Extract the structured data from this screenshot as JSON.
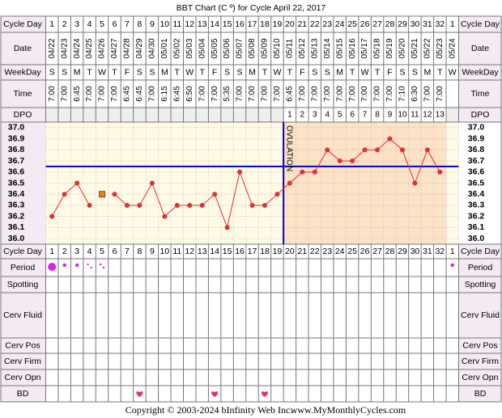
{
  "title": "BBT Chart (C º) for Cycle April 22, 2017",
  "row_labels": {
    "cycle_day": "Cycle Day",
    "date": "Date",
    "weekday": "WeekDay",
    "time": "Time",
    "dpo": "DPO",
    "period": "Period",
    "spotting": "Spotting",
    "cerv_fluid": "Cerv Fluid",
    "cerv_pos": "Cerv Pos",
    "cerv_firm": "Cerv Firm",
    "cerv_opn": "Cerv Opn",
    "bd": "BD"
  },
  "chart_data": {
    "type": "line",
    "cycle_days": [
      1,
      2,
      3,
      4,
      5,
      6,
      7,
      8,
      9,
      10,
      11,
      12,
      13,
      14,
      15,
      16,
      17,
      18,
      19,
      20,
      21,
      22,
      23,
      24,
      25,
      26,
      27,
      28,
      29,
      30,
      31,
      32,
      1
    ],
    "dates": [
      "04/22",
      "04/23",
      "04/24",
      "04/25",
      "04/26",
      "04/27",
      "04/28",
      "04/29",
      "04/30",
      "05/01",
      "05/02",
      "05/03",
      "05/04",
      "05/05",
      "05/06",
      "05/07",
      "05/08",
      "05/09",
      "05/10",
      "05/11",
      "05/12",
      "05/13",
      "05/14",
      "05/15",
      "05/16",
      "05/17",
      "05/18",
      "05/19",
      "05/20",
      "05/21",
      "05/22",
      "05/23",
      "05/24"
    ],
    "weekdays": [
      "S",
      "S",
      "M",
      "T",
      "W",
      "T",
      "F",
      "S",
      "S",
      "M",
      "T",
      "W",
      "T",
      "F",
      "S",
      "S",
      "M",
      "T",
      "W",
      "T",
      "F",
      "S",
      "S",
      "M",
      "T",
      "W",
      "T",
      "F",
      "S",
      "S",
      "M",
      "T",
      "W"
    ],
    "times": [
      "7:00",
      "7:00",
      "6:45",
      "7:00",
      "7:00",
      "7:00",
      "6:45",
      "6:45",
      "7:00",
      "6:15",
      "6:45",
      "6:50",
      "7:00",
      "7:00",
      "5:35",
      "7:00",
      "7:00",
      "7:00",
      "7:00",
      "6:45",
      "7:00",
      "7:00",
      "7:00",
      "7:00",
      "7:00",
      "7:00",
      "7:00",
      "7:00",
      "7:10",
      "6:30",
      "7:00",
      "7:00",
      null
    ],
    "dpo": [
      null,
      null,
      null,
      null,
      null,
      null,
      null,
      null,
      null,
      null,
      null,
      null,
      null,
      null,
      null,
      null,
      null,
      null,
      null,
      1,
      2,
      3,
      4,
      5,
      6,
      7,
      8,
      9,
      10,
      11,
      12,
      13,
      null
    ],
    "series": [
      {
        "color": "#e03030",
        "values": [
          36.2,
          36.4,
          36.5,
          36.3,
          null,
          36.4,
          36.3,
          36.3,
          36.5,
          36.2,
          36.3,
          36.3,
          36.3,
          36.4,
          36.1,
          36.6,
          36.3,
          36.3,
          36.4,
          36.5,
          36.6,
          36.6,
          36.8,
          36.7,
          36.7,
          36.8,
          36.8,
          36.9,
          36.8,
          36.5,
          36.8,
          36.6,
          null
        ]
      },
      {
        "color": "#f08000",
        "values": [
          null,
          null,
          null,
          null,
          36.4,
          null,
          null,
          null,
          null,
          null,
          null,
          null,
          null,
          null,
          null,
          null,
          null,
          null,
          null,
          null,
          null,
          null,
          null,
          null,
          null,
          null,
          null,
          null,
          null,
          null,
          null,
          null,
          null
        ]
      }
    ],
    "ylim": [
      35.95,
      37.05
    ],
    "yticks": [
      {
        "value": 37.0,
        "label": "37.0"
      },
      36.9,
      36.8,
      36.7,
      36.6,
      36.5,
      36.4,
      36.3,
      36.2,
      36.1,
      {
        "value": 36.0,
        "label": "36.0"
      }
    ],
    "coverline": 36.65,
    "coverline_color": "#0000cc",
    "ovulation_index": 19,
    "ovulation_label": "OVULATION",
    "luteal_color": "#fbe3c6",
    "period": [
      "heavy",
      "medium",
      "medium",
      "light",
      "light",
      null,
      null,
      null,
      null,
      null,
      null,
      null,
      null,
      null,
      null,
      null,
      null,
      null,
      null,
      null,
      null,
      null,
      null,
      null,
      null,
      null,
      null,
      null,
      null,
      null,
      null,
      null,
      "medium"
    ],
    "period_color": "#e020e0",
    "bd_index": [
      7,
      13,
      17
    ],
    "bd_color": "#e0307a"
  },
  "footer": {
    "copyright": "Copyright © 2003-2024 bInfinity Web Inc.",
    "site": "www.MyMonthlyCycles.com"
  }
}
